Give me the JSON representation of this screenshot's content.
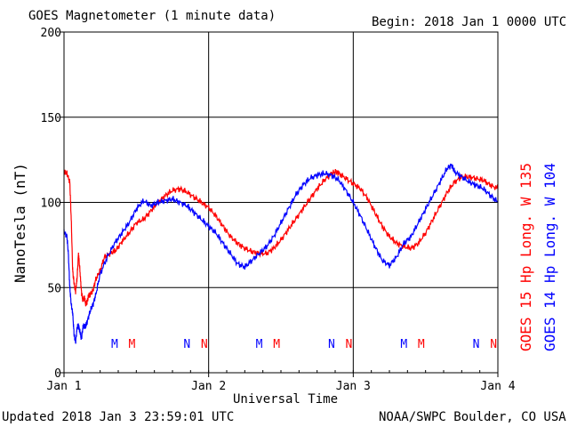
{
  "header": {
    "title": "GOES Magnetometer (1 minute data)",
    "begin": "Begin:  2018 Jan 1 0000 UTC"
  },
  "footer": {
    "updated": "Updated 2018 Jan  3 23:59:01 UTC",
    "source": "NOAA/SWPC Boulder, CO USA"
  },
  "colors": {
    "goes15": "#ff0000",
    "goes14": "#0000ff",
    "grid": "#000000"
  },
  "chart_data": {
    "type": "line",
    "title": "GOES Magnetometer (1 minute data)",
    "xlabel": "Universal Time",
    "ylabel": "NanoTesla (nT)",
    "ylim": [
      0,
      200
    ],
    "xlim_days": [
      0,
      3
    ],
    "y_ticks": [
      "0",
      "50",
      "100",
      "150",
      "200"
    ],
    "x_ticks": [
      "Jan 1",
      "Jan 2",
      "Jan 3",
      "Jan 4"
    ],
    "grid": true,
    "series": [
      {
        "name": "GOES 15 Hp  Long. W 135",
        "color": "#ff0000",
        "points": [
          [
            0,
            118
          ],
          [
            0.02,
            117
          ],
          [
            0.04,
            112
          ],
          [
            0.05,
            90
          ],
          [
            0.06,
            60
          ],
          [
            0.07,
            52
          ],
          [
            0.08,
            48
          ],
          [
            0.09,
            55
          ],
          [
            0.1,
            70
          ],
          [
            0.11,
            60
          ],
          [
            0.12,
            48
          ],
          [
            0.13,
            42
          ],
          [
            0.14,
            45
          ],
          [
            0.15,
            40
          ],
          [
            0.16,
            42
          ],
          [
            0.17,
            45
          ],
          [
            0.18,
            46
          ],
          [
            0.2,
            48
          ],
          [
            0.22,
            55
          ],
          [
            0.25,
            60
          ],
          [
            0.28,
            68
          ],
          [
            0.32,
            70
          ],
          [
            0.36,
            72
          ],
          [
            0.4,
            77
          ],
          [
            0.45,
            82
          ],
          [
            0.5,
            88
          ],
          [
            0.55,
            90
          ],
          [
            0.6,
            95
          ],
          [
            0.65,
            100
          ],
          [
            0.7,
            104
          ],
          [
            0.75,
            107
          ],
          [
            0.8,
            108
          ],
          [
            0.85,
            106
          ],
          [
            0.9,
            103
          ],
          [
            0.95,
            100
          ],
          [
            1.0,
            97
          ],
          [
            1.05,
            92
          ],
          [
            1.1,
            86
          ],
          [
            1.15,
            80
          ],
          [
            1.2,
            76
          ],
          [
            1.25,
            73
          ],
          [
            1.3,
            71
          ],
          [
            1.35,
            70
          ],
          [
            1.4,
            70
          ],
          [
            1.45,
            73
          ],
          [
            1.5,
            78
          ],
          [
            1.55,
            84
          ],
          [
            1.6,
            90
          ],
          [
            1.65,
            96
          ],
          [
            1.7,
            102
          ],
          [
            1.75,
            108
          ],
          [
            1.8,
            113
          ],
          [
            1.85,
            117
          ],
          [
            1.88,
            118
          ],
          [
            1.9,
            117
          ],
          [
            1.95,
            114
          ],
          [
            2.0,
            111
          ],
          [
            2.05,
            108
          ],
          [
            2.1,
            102
          ],
          [
            2.15,
            94
          ],
          [
            2.2,
            86
          ],
          [
            2.25,
            80
          ],
          [
            2.3,
            76
          ],
          [
            2.35,
            74
          ],
          [
            2.4,
            73
          ],
          [
            2.45,
            76
          ],
          [
            2.5,
            82
          ],
          [
            2.55,
            90
          ],
          [
            2.6,
            98
          ],
          [
            2.65,
            106
          ],
          [
            2.7,
            112
          ],
          [
            2.75,
            115
          ],
          [
            2.8,
            115
          ],
          [
            2.85,
            114
          ],
          [
            2.9,
            113
          ],
          [
            2.95,
            110
          ],
          [
            3.0,
            108
          ]
        ]
      },
      {
        "name": "GOES 14 Hp  Long. W 104",
        "color": "#0000ff",
        "points": [
          [
            0,
            83
          ],
          [
            0.02,
            80
          ],
          [
            0.03,
            70
          ],
          [
            0.04,
            50
          ],
          [
            0.05,
            40
          ],
          [
            0.06,
            35
          ],
          [
            0.07,
            22
          ],
          [
            0.08,
            18
          ],
          [
            0.09,
            26
          ],
          [
            0.1,
            28
          ],
          [
            0.11,
            24
          ],
          [
            0.12,
            20
          ],
          [
            0.13,
            26
          ],
          [
            0.14,
            28
          ],
          [
            0.15,
            27
          ],
          [
            0.16,
            30
          ],
          [
            0.18,
            36
          ],
          [
            0.2,
            40
          ],
          [
            0.22,
            46
          ],
          [
            0.25,
            58
          ],
          [
            0.3,
            68
          ],
          [
            0.35,
            76
          ],
          [
            0.4,
            82
          ],
          [
            0.45,
            88
          ],
          [
            0.5,
            96
          ],
          [
            0.55,
            101
          ],
          [
            0.6,
            98
          ],
          [
            0.65,
            100
          ],
          [
            0.7,
            101
          ],
          [
            0.75,
            102
          ],
          [
            0.8,
            100
          ],
          [
            0.85,
            98
          ],
          [
            0.9,
            94
          ],
          [
            0.95,
            90
          ],
          [
            1.0,
            86
          ],
          [
            1.05,
            82
          ],
          [
            1.1,
            76
          ],
          [
            1.15,
            70
          ],
          [
            1.2,
            64
          ],
          [
            1.25,
            62
          ],
          [
            1.3,
            66
          ],
          [
            1.35,
            70
          ],
          [
            1.4,
            74
          ],
          [
            1.45,
            80
          ],
          [
            1.5,
            88
          ],
          [
            1.55,
            96
          ],
          [
            1.6,
            104
          ],
          [
            1.65,
            110
          ],
          [
            1.7,
            114
          ],
          [
            1.75,
            116
          ],
          [
            1.8,
            117
          ],
          [
            1.85,
            116
          ],
          [
            1.9,
            113
          ],
          [
            1.95,
            107
          ],
          [
            2.0,
            100
          ],
          [
            2.05,
            92
          ],
          [
            2.1,
            83
          ],
          [
            2.15,
            74
          ],
          [
            2.2,
            66
          ],
          [
            2.25,
            63
          ],
          [
            2.3,
            68
          ],
          [
            2.35,
            76
          ],
          [
            2.4,
            80
          ],
          [
            2.45,
            88
          ],
          [
            2.5,
            96
          ],
          [
            2.55,
            104
          ],
          [
            2.6,
            112
          ],
          [
            2.65,
            120
          ],
          [
            2.68,
            122
          ],
          [
            2.7,
            118
          ],
          [
            2.75,
            115
          ],
          [
            2.8,
            112
          ],
          [
            2.85,
            110
          ],
          [
            2.9,
            108
          ],
          [
            2.95,
            104
          ],
          [
            3.0,
            100
          ]
        ]
      }
    ],
    "annotations": [
      {
        "label": "M",
        "x": 0.35,
        "series": "GOES 14"
      },
      {
        "label": "M",
        "x": 0.47,
        "series": "GOES 15"
      },
      {
        "label": "N",
        "x": 0.85,
        "series": "GOES 14"
      },
      {
        "label": "N",
        "x": 0.97,
        "series": "GOES 15"
      },
      {
        "label": "M",
        "x": 1.35,
        "series": "GOES 14"
      },
      {
        "label": "M",
        "x": 1.47,
        "series": "GOES 15"
      },
      {
        "label": "N",
        "x": 1.85,
        "series": "GOES 14"
      },
      {
        "label": "N",
        "x": 1.97,
        "series": "GOES 15"
      },
      {
        "label": "M",
        "x": 2.35,
        "series": "GOES 14"
      },
      {
        "label": "M",
        "x": 2.47,
        "series": "GOES 15"
      },
      {
        "label": "N",
        "x": 2.85,
        "series": "GOES 14"
      },
      {
        "label": "N",
        "x": 2.97,
        "series": "GOES 15"
      }
    ]
  }
}
